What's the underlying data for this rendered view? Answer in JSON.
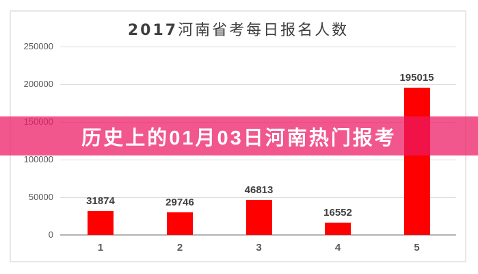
{
  "title": {
    "prefix": "2017",
    "main": "河南省考每日报名人数"
  },
  "overlay": {
    "text": "历史上的01月03日河南热门报考",
    "background": "#ec1862",
    "opacity": 0.73,
    "text_color": "#ffffff"
  },
  "chart_data": {
    "type": "bar",
    "title": "2017河南省考每日报名人数",
    "categories": [
      "1",
      "2",
      "3",
      "4",
      "5"
    ],
    "values": [
      31874,
      29746,
      46813,
      16552,
      195015
    ],
    "value_labels": [
      "31874",
      "29746",
      "46813",
      "16552",
      "195015"
    ],
    "ylim": [
      0,
      250000
    ],
    "ytick_interval": 50000,
    "yticks": [
      250000,
      200000,
      150000,
      100000,
      50000,
      0
    ],
    "grid": true,
    "legend": null,
    "xlabel": "",
    "ylabel": "",
    "bar_color": "#fe0000",
    "value_label_color": "#404040",
    "axis_label_color": "#595959",
    "gridline_color": "#dcdcdc"
  }
}
